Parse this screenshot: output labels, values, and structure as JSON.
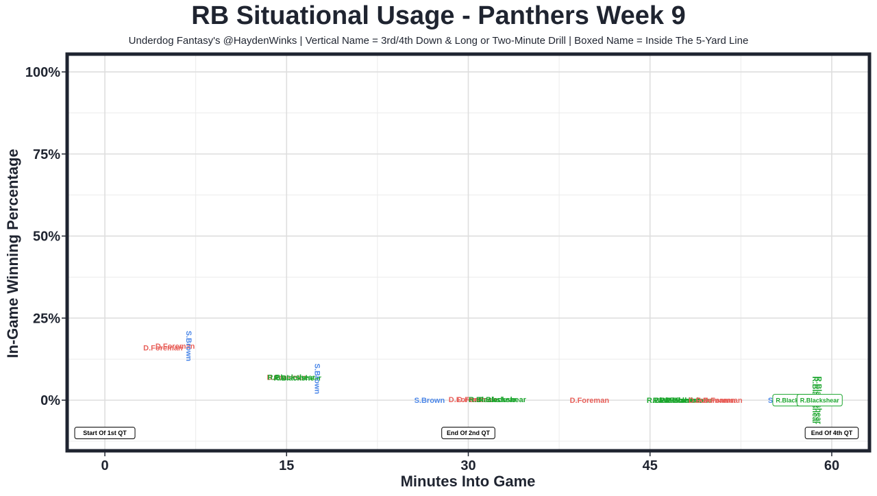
{
  "chart_data": {
    "type": "scatter",
    "title": "RB Situational Usage - Panthers Week 9",
    "subtitle": "Underdog Fantasy's @HaydenWinks | Vertical Name = 3rd/4th Down & Long or Two-Minute Drill | Boxed Name = Inside The 5-Yard Line",
    "xlabel": "Minutes Into Game",
    "ylabel": "In-Game Winning Percentage",
    "xlim": [
      -3,
      63
    ],
    "ylim": [
      -0.15,
      1.05
    ],
    "x_ticks": [
      0,
      15,
      30,
      45,
      60
    ],
    "x_tick_labels": [
      "0",
      "15",
      "30",
      "45",
      "60"
    ],
    "y_ticks": [
      0,
      0.25,
      0.5,
      0.75,
      1.0
    ],
    "y_tick_labels": [
      "0%",
      "25%",
      "50%",
      "75%",
      "100%"
    ],
    "grid": true,
    "players": {
      "D.Foreman": "#e8605a",
      "S.Brown": "#4a86e8",
      "R.Blackshear": "#1aa52c"
    },
    "points": [
      {
        "player": "D.Foreman",
        "x": 4.8,
        "y": 0.16,
        "style": "normal"
      },
      {
        "player": "D.Foreman",
        "x": 5.8,
        "y": 0.165,
        "style": "normal"
      },
      {
        "player": "S.Brown",
        "x": 6.5,
        "y": 0.165,
        "style": "vertical"
      },
      {
        "player": "D.Foreman",
        "x": 15.0,
        "y": 0.07,
        "style": "normal"
      },
      {
        "player": "R.Blackshear",
        "x": 15.4,
        "y": 0.07,
        "style": "normal"
      },
      {
        "player": "R.Blackshear",
        "x": 15.9,
        "y": 0.068,
        "style": "normal"
      },
      {
        "player": "S.Brown",
        "x": 17.1,
        "y": 0.065,
        "style": "vertical"
      },
      {
        "player": "S.Brown",
        "x": 26.8,
        "y": 0.0,
        "style": "normal"
      },
      {
        "player": "D.Foreman",
        "x": 30.0,
        "y": 0.002,
        "style": "normal"
      },
      {
        "player": "D.Foreman",
        "x": 30.7,
        "y": 0.002,
        "style": "normal"
      },
      {
        "player": "R.Blackshear",
        "x": 32.0,
        "y": 0.002,
        "style": "normal"
      },
      {
        "player": "R.Blackshear",
        "x": 32.8,
        "y": 0.002,
        "style": "normal"
      },
      {
        "player": "D.Foreman",
        "x": 40.0,
        "y": 0.0,
        "style": "normal"
      },
      {
        "player": "R.Blackshear",
        "x": 46.7,
        "y": 0.0,
        "style": "normal"
      },
      {
        "player": "R.Blackshear",
        "x": 47.2,
        "y": 0.0,
        "style": "normal"
      },
      {
        "player": "R.Blackshear",
        "x": 47.7,
        "y": 0.0,
        "style": "normal"
      },
      {
        "player": "R.Blackshear",
        "x": 48.2,
        "y": 0.0,
        "style": "normal"
      },
      {
        "player": "D.Foreman",
        "x": 49.8,
        "y": 0.0,
        "style": "normal"
      },
      {
        "player": "D.Foreman",
        "x": 50.4,
        "y": 0.0,
        "style": "normal"
      },
      {
        "player": "D.Foreman",
        "x": 51.0,
        "y": 0.0,
        "style": "normal"
      },
      {
        "player": "S.Brown",
        "x": 56.0,
        "y": 0.0,
        "style": "normal"
      },
      {
        "player": "R.Blackshear",
        "x": 57.0,
        "y": 0.0,
        "style": "boxed"
      },
      {
        "player": "R.Blackshear",
        "x": 58.2,
        "y": 0.0,
        "style": "vertical"
      },
      {
        "player": "R.Blackshear",
        "x": 58.5,
        "y": 0.0,
        "style": "vertical"
      },
      {
        "player": "R.Blackshear",
        "x": 59.0,
        "y": 0.0,
        "style": "boxed"
      }
    ],
    "annotations": [
      {
        "text": "Start Of 1st QT",
        "x": 0,
        "y": -0.1
      },
      {
        "text": "End Of 2nd QT",
        "x": 30,
        "y": -0.1
      },
      {
        "text": "End Of 4th QT",
        "x": 60,
        "y": -0.1
      }
    ]
  }
}
